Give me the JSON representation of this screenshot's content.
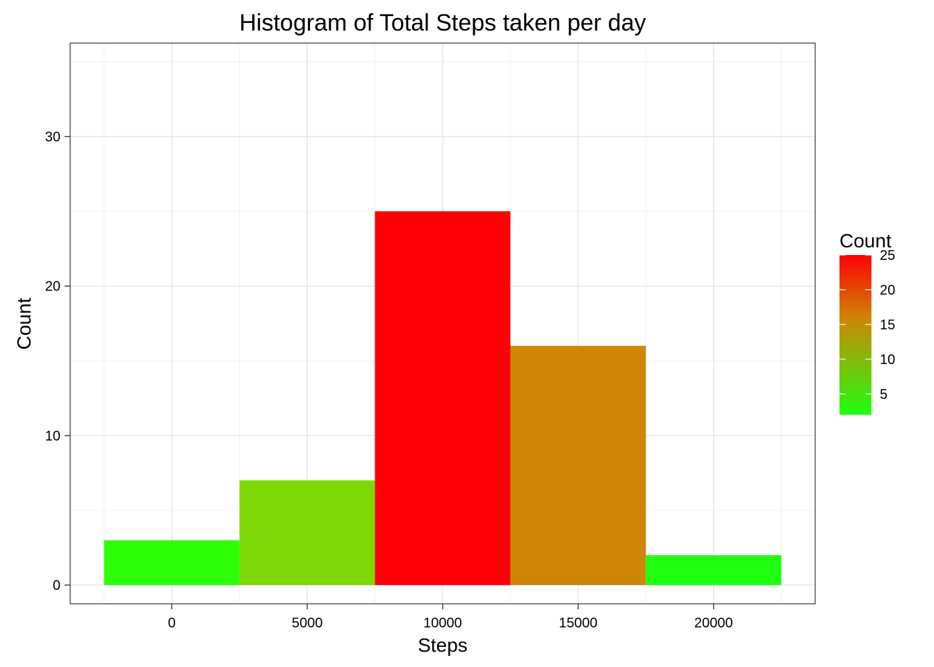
{
  "chart_data": {
    "type": "bar",
    "title": "Histogram of Total Steps taken per day",
    "xlabel": "Steps",
    "ylabel": "Count",
    "bins": [
      {
        "x_start": -2500,
        "x_end": 2500,
        "count": 3,
        "color": "#2EFF06"
      },
      {
        "x_start": 2500,
        "x_end": 7500,
        "count": 7,
        "color": "#7FD906"
      },
      {
        "x_start": 7500,
        "x_end": 12500,
        "count": 25,
        "color": "#FF0006"
      },
      {
        "x_start": 12500,
        "x_end": 17500,
        "count": 16,
        "color": "#CD8606"
      },
      {
        "x_start": 17500,
        "x_end": 22500,
        "count": 2,
        "color": "#1FFF10"
      }
    ],
    "x_ticks": [
      {
        "value": 0,
        "label": "0"
      },
      {
        "value": 5000,
        "label": "5000"
      },
      {
        "value": 10000,
        "label": "10000"
      },
      {
        "value": 15000,
        "label": "15000"
      },
      {
        "value": 20000,
        "label": "20000"
      }
    ],
    "y_ticks": [
      {
        "value": 0,
        "label": "0"
      },
      {
        "value": 10,
        "label": "10"
      },
      {
        "value": 20,
        "label": "20"
      },
      {
        "value": 30,
        "label": "30"
      }
    ],
    "xlim": [
      -3750,
      23750
    ],
    "ylim": [
      -1.25,
      36.25
    ],
    "grid": true,
    "legend": {
      "title": "Count",
      "placement": "right",
      "range": [
        2,
        25
      ],
      "color_low": "#1FFF10",
      "color_high": "#FF0006",
      "ticks": [
        {
          "value": 5,
          "label": "5"
        },
        {
          "value": 10,
          "label": "10"
        },
        {
          "value": 15,
          "label": "15"
        },
        {
          "value": 20,
          "label": "20"
        },
        {
          "value": 25,
          "label": "25"
        }
      ]
    }
  }
}
